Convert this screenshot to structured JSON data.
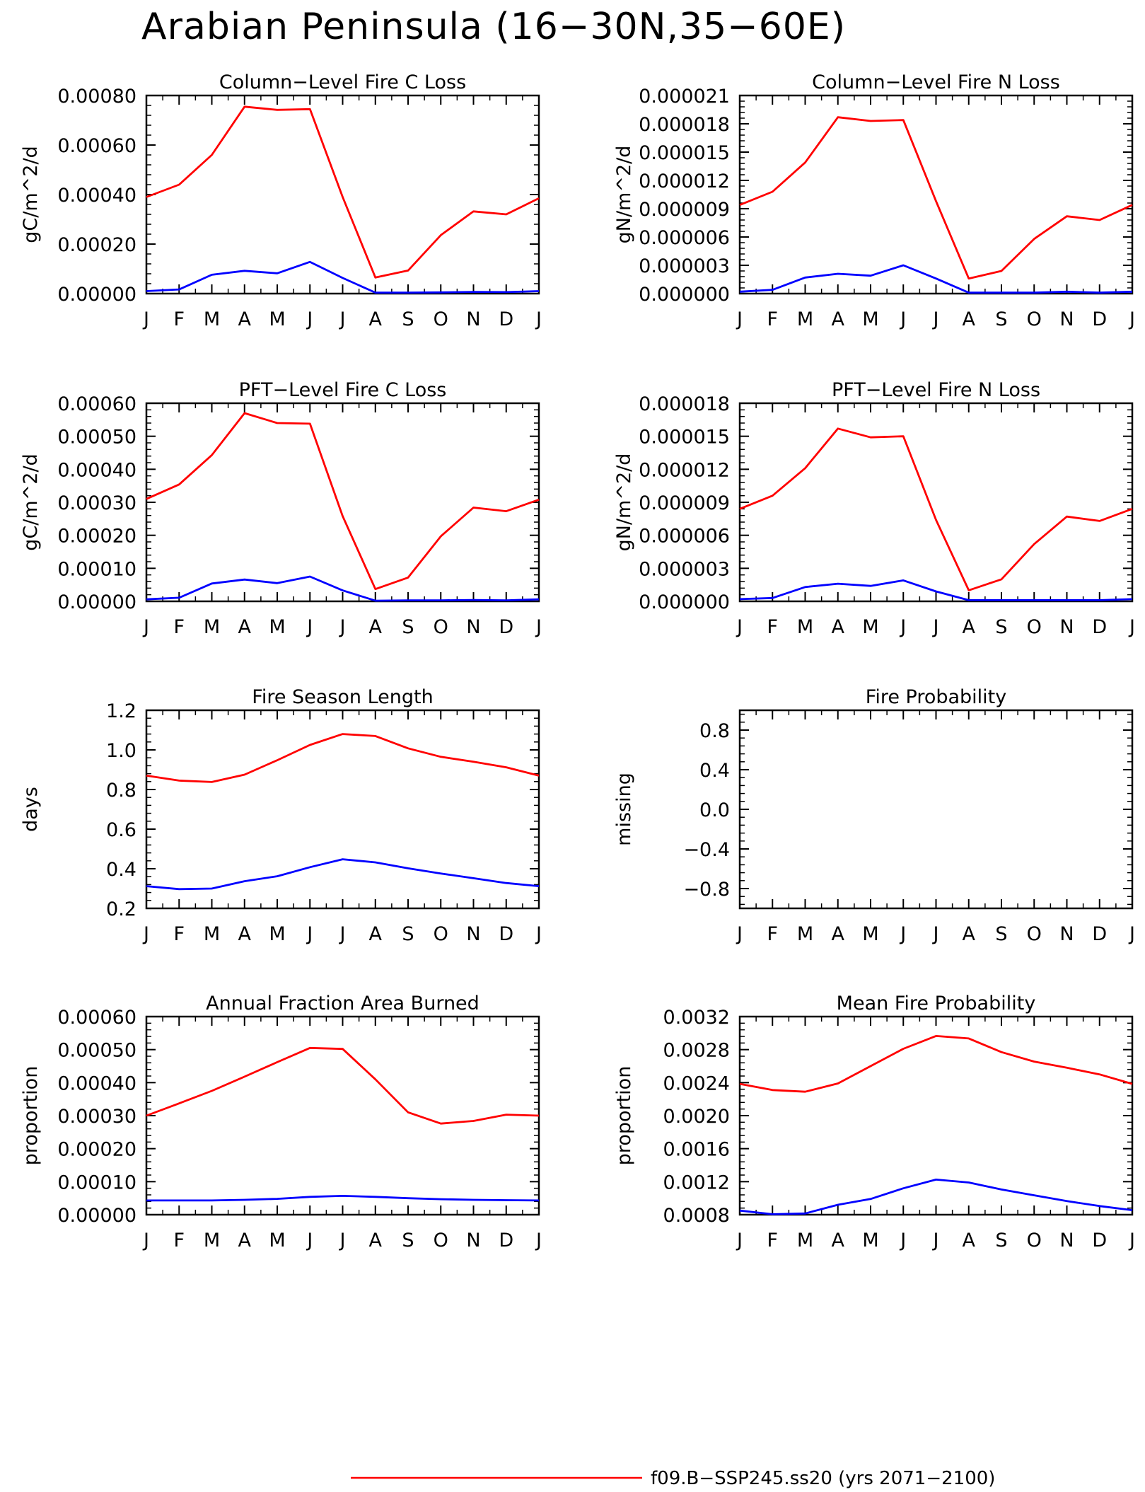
{
  "page_title": "Arabian Peninsula (16−30N,35−60E)",
  "legend": {
    "label": "f09.B−SSP245.ss20 (yrs 2071−2100)",
    "color": "#ff0000"
  },
  "colors": {
    "series_1": "#ff0000",
    "series_2": "#0000ff",
    "axis": "#000000"
  },
  "chart_data": [
    {
      "type": "line",
      "title": "Column−Level Fire C Loss",
      "xlabel": "",
      "ylabel": "gC/m^2/d",
      "categories": [
        "J",
        "F",
        "M",
        "A",
        "M",
        "J",
        "J",
        "A",
        "S",
        "O",
        "N",
        "D",
        "J"
      ],
      "yticks": [
        "0.00000",
        "0.00020",
        "0.00040",
        "0.00060",
        "0.00080"
      ],
      "ylim": [
        0,
        0.0008
      ],
      "grid": false,
      "series": [
        {
          "values": [
            0.00039,
            0.00044,
            0.00056,
            0.000755,
            0.000742,
            0.000745,
            0.00039,
            6.5e-05,
            9.3e-05,
            0.000236,
            0.000332,
            0.00032,
            0.000385
          ]
        },
        {
          "values": [
            1e-05,
            1.7e-05,
            7.6e-05,
            9.2e-05,
            8.2e-05,
            0.000128,
            6.3e-05,
            4e-06,
            4e-06,
            5e-06,
            7e-06,
            6e-06,
            1e-05
          ]
        }
      ]
    },
    {
      "type": "line",
      "title": "Column−Level Fire N Loss",
      "xlabel": "",
      "ylabel": "gN/m^2/d",
      "categories": [
        "J",
        "F",
        "M",
        "A",
        "M",
        "J",
        "J",
        "A",
        "S",
        "O",
        "N",
        "D",
        "J"
      ],
      "yticks": [
        "0.000000",
        "0.000003",
        "0.000006",
        "0.000009",
        "0.000012",
        "0.000015",
        "0.000018",
        "0.000021"
      ],
      "ylim": [
        0,
        2.1e-05
      ],
      "grid": false,
      "series": [
        {
          "values": [
            9.4e-06,
            1.08e-05,
            1.39e-05,
            1.87e-05,
            1.83e-05,
            1.84e-05,
            9.8e-06,
            1.6e-06,
            2.4e-06,
            5.8e-06,
            8.2e-06,
            7.8e-06,
            9.4e-06
          ]
        },
        {
          "values": [
            2e-07,
            4e-07,
            1.7e-06,
            2.1e-06,
            1.9e-06,
            3e-06,
            1.6e-06,
            1e-07,
            1e-07,
            1e-07,
            2e-07,
            1e-07,
            2e-07
          ]
        }
      ]
    },
    {
      "type": "line",
      "title": "PFT−Level Fire C Loss",
      "xlabel": "",
      "ylabel": "gC/m^2/d",
      "categories": [
        "J",
        "F",
        "M",
        "A",
        "M",
        "J",
        "J",
        "A",
        "S",
        "O",
        "N",
        "D",
        "J"
      ],
      "yticks": [
        "0.00000",
        "0.00010",
        "0.00020",
        "0.00030",
        "0.00040",
        "0.00050",
        "0.00060"
      ],
      "ylim": [
        0,
        0.0006
      ],
      "grid": false,
      "series": [
        {
          "values": [
            0.00031,
            0.000354,
            0.000443,
            0.00057,
            0.00054,
            0.000538,
            0.000258,
            3.7e-05,
            7.2e-05,
            0.000197,
            0.000284,
            0.000273,
            0.000308
          ]
        },
        {
          "values": [
            6e-06,
            1.1e-05,
            5.4e-05,
            6.6e-05,
            5.5e-05,
            7.5e-05,
            3.3e-05,
            2e-06,
            3e-06,
            3e-06,
            4e-06,
            3e-06,
            6e-06
          ]
        }
      ]
    },
    {
      "type": "line",
      "title": "PFT−Level Fire N Loss",
      "xlabel": "",
      "ylabel": "gN/m^2/d",
      "categories": [
        "J",
        "F",
        "M",
        "A",
        "M",
        "J",
        "J",
        "A",
        "S",
        "O",
        "N",
        "D",
        "J"
      ],
      "yticks": [
        "0.000000",
        "0.000003",
        "0.000006",
        "0.000009",
        "0.000012",
        "0.000015",
        "0.000018"
      ],
      "ylim": [
        0,
        1.8e-05
      ],
      "grid": false,
      "series": [
        {
          "values": [
            8.4e-06,
            9.6e-06,
            1.21e-05,
            1.57e-05,
            1.49e-05,
            1.5e-05,
            7.4e-06,
            1e-06,
            2e-06,
            5.2e-06,
            7.7e-06,
            7.3e-06,
            8.4e-06
          ]
        },
        {
          "values": [
            2e-07,
            3e-07,
            1.3e-06,
            1.6e-06,
            1.4e-06,
            1.9e-06,
            9e-07,
            1e-07,
            1e-07,
            1e-07,
            1e-07,
            1e-07,
            2e-07
          ]
        }
      ]
    },
    {
      "type": "line",
      "title": "Fire Season Length",
      "xlabel": "",
      "ylabel": "days",
      "categories": [
        "J",
        "F",
        "M",
        "A",
        "M",
        "J",
        "J",
        "A",
        "S",
        "O",
        "N",
        "D",
        "J"
      ],
      "yticks": [
        "0.2",
        "0.4",
        "0.6",
        "0.8",
        "1.0",
        "1.2"
      ],
      "ylim": [
        0.2,
        1.2
      ],
      "grid": false,
      "series": [
        {
          "values": [
            0.87,
            0.845,
            0.838,
            0.875,
            0.948,
            1.025,
            1.08,
            1.07,
            1.008,
            0.965,
            0.94,
            0.912,
            0.87
          ]
        },
        {
          "values": [
            0.312,
            0.297,
            0.3,
            0.337,
            0.362,
            0.408,
            0.448,
            0.432,
            0.402,
            0.376,
            0.352,
            0.328,
            0.312
          ]
        }
      ]
    },
    {
      "type": "line",
      "title": "Fire Probability",
      "xlabel": "",
      "ylabel": "missing",
      "categories": [
        "J",
        "F",
        "M",
        "A",
        "M",
        "J",
        "J",
        "A",
        "S",
        "O",
        "N",
        "D",
        "J"
      ],
      "yticks": [
        "−0.8",
        "−0.4",
        "0.0",
        "0.4",
        "0.8"
      ],
      "ylim": [
        -1,
        1
      ],
      "grid": false,
      "series": []
    },
    {
      "type": "line",
      "title": "Annual Fraction Area Burned",
      "xlabel": "",
      "ylabel": "proportion",
      "categories": [
        "J",
        "F",
        "M",
        "A",
        "M",
        "J",
        "J",
        "A",
        "S",
        "O",
        "N",
        "D",
        "J"
      ],
      "yticks": [
        "0.00000",
        "0.00010",
        "0.00020",
        "0.00030",
        "0.00040",
        "0.00050",
        "0.00060"
      ],
      "ylim": [
        0,
        0.0006
      ],
      "grid": false,
      "series": [
        {
          "values": [
            0.0003,
            0.000337,
            0.000375,
            0.000418,
            0.000462,
            0.000505,
            0.000502,
            0.00041,
            0.00031,
            0.000276,
            0.000284,
            0.000303,
            0.0003
          ]
        },
        {
          "values": [
            4.3e-05,
            4.3e-05,
            4.3e-05,
            4.5e-05,
            4.8e-05,
            5.4e-05,
            5.7e-05,
            5.4e-05,
            5e-05,
            4.7e-05,
            4.5e-05,
            4.4e-05,
            4.3e-05
          ]
        }
      ]
    },
    {
      "type": "line",
      "title": "Mean Fire Probability",
      "xlabel": "",
      "ylabel": "proportion",
      "categories": [
        "J",
        "F",
        "M",
        "A",
        "M",
        "J",
        "J",
        "A",
        "S",
        "O",
        "N",
        "D",
        "J"
      ],
      "yticks": [
        "0.0008",
        "0.0012",
        "0.0016",
        "0.0020",
        "0.0024",
        "0.0028",
        "0.0032"
      ],
      "ylim": [
        0.0008,
        0.0032
      ],
      "grid": false,
      "series": [
        {
          "values": [
            0.002385,
            0.00231,
            0.00229,
            0.00239,
            0.0026,
            0.00281,
            0.002965,
            0.002935,
            0.00277,
            0.002655,
            0.00258,
            0.0025,
            0.002385
          ]
        },
        {
          "values": [
            0.00085,
            0.000805,
            0.000815,
            0.00092,
            0.00099,
            0.00112,
            0.001225,
            0.00119,
            0.001105,
            0.001035,
            0.000965,
            0.000905,
            0.000855
          ]
        }
      ]
    }
  ]
}
